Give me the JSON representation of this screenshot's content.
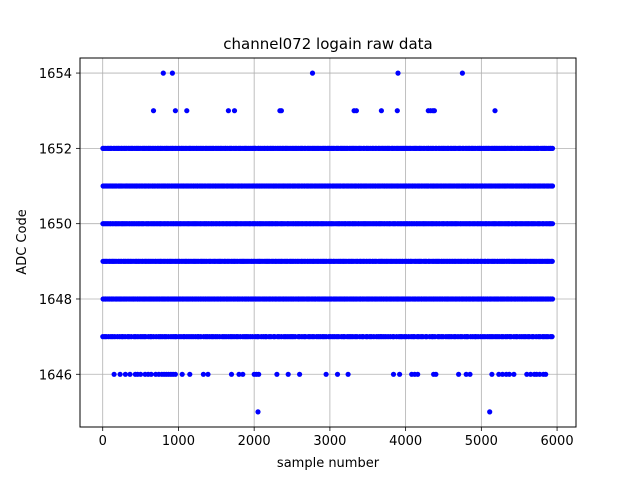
{
  "chart_data": {
    "type": "scatter",
    "title": "channel072 logain raw data",
    "xlabel": "sample number",
    "ylabel": "ADC Code",
    "xlim": [
      -300,
      6250
    ],
    "ylim": [
      1644.6,
      1654.4
    ],
    "xticks": [
      0,
      1000,
      2000,
      3000,
      4000,
      5000,
      6000
    ],
    "yticks": [
      1646,
      1648,
      1650,
      1652,
      1654
    ],
    "grid": true,
    "marker_color": "#0000ff",
    "x_range": [
      0,
      5940
    ],
    "series": [
      {
        "y": 1654,
        "x": [
          800,
          920,
          2770,
          3900,
          4750
        ]
      },
      {
        "y": 1653,
        "x": [
          670,
          960,
          1110,
          1660,
          1740,
          2340,
          2360,
          3320,
          3350,
          3680,
          3890,
          4300,
          4330,
          4360,
          4380,
          5180
        ]
      },
      {
        "y": 1652,
        "dense_x_count": 300
      },
      {
        "y": 1651,
        "dense_x_count": 350
      },
      {
        "y": 1650,
        "dense_x_count": 380
      },
      {
        "y": 1649,
        "dense_x_count": 380
      },
      {
        "y": 1648,
        "dense_x_count": 370
      },
      {
        "y": 1647,
        "dense_x_count": 220
      },
      {
        "y": 1646,
        "x": [
          150,
          230,
          300,
          360,
          430,
          460,
          500,
          560,
          600,
          640,
          700,
          740,
          780,
          810,
          840,
          870,
          900,
          930,
          960,
          1050,
          1150,
          1330,
          1390,
          1700,
          1800,
          1850,
          2000,
          2030,
          2060,
          2300,
          2450,
          2600,
          2950,
          3100,
          3240,
          3840,
          3920,
          4080,
          4120,
          4160,
          4370,
          4400,
          4700,
          4800,
          4850,
          5140,
          5230,
          5280,
          5330,
          5370,
          5430,
          5600,
          5650,
          5700,
          5730,
          5770,
          5820,
          5850
        ]
      },
      {
        "y": 1645,
        "x": [
          2050,
          5110
        ]
      }
    ]
  }
}
